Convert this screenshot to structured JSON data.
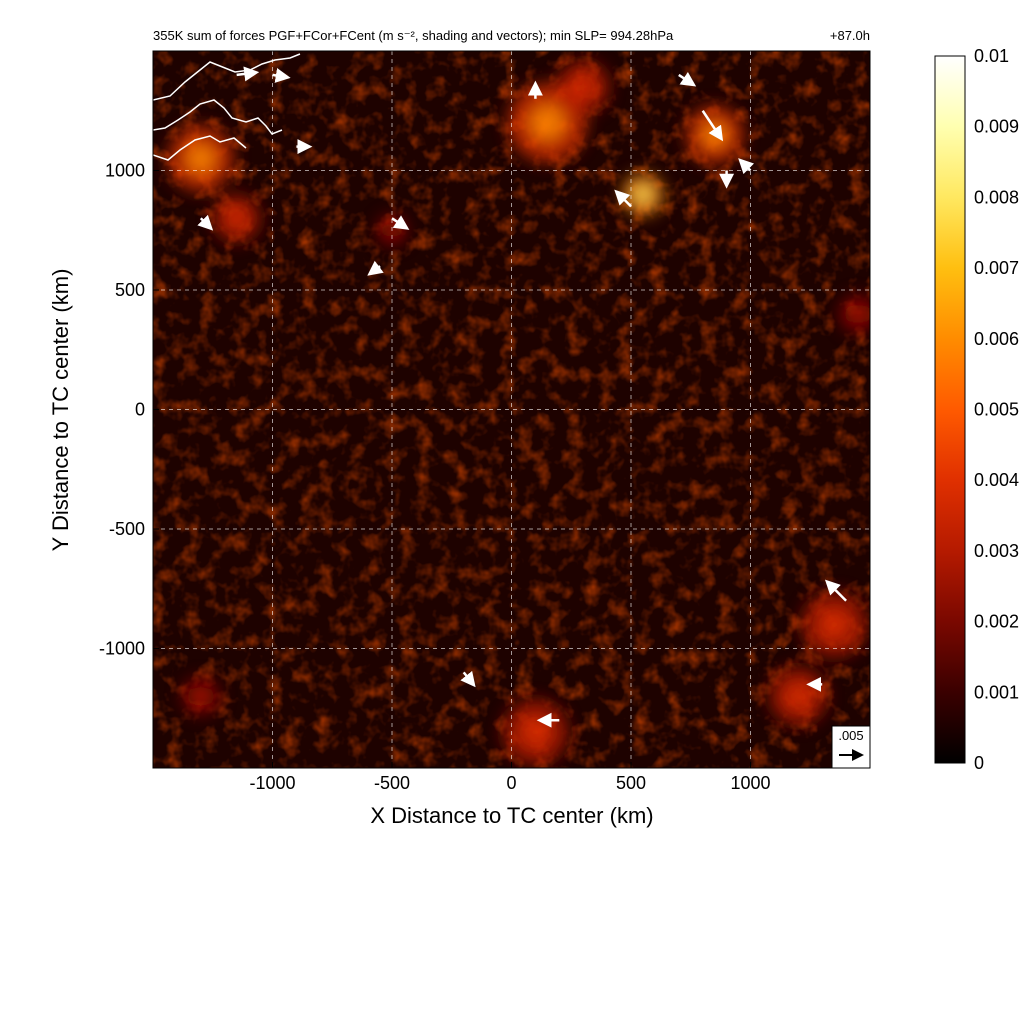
{
  "chart_data": {
    "type": "heatmap",
    "title": "355K sum of forces PGF+FCor+FCent (m s⁻², shading and vectors); min SLP= 994.28hPa",
    "time_label": "+87.0h",
    "xlabel": "X Distance to TC center (km)",
    "ylabel": "Y Distance to TC center (km)",
    "xlim": [
      -1500,
      1500
    ],
    "ylim": [
      -1500,
      1500
    ],
    "x_ticks": [
      -1000,
      -500,
      0,
      500,
      1000
    ],
    "x_tick_labels": [
      "-1000",
      "-500",
      "0",
      "500",
      "1000"
    ],
    "y_ticks": [
      -1000,
      -500,
      0,
      500,
      1000
    ],
    "y_tick_labels": [
      "-1000",
      "-500",
      "0",
      "500",
      "1000"
    ],
    "grid": true,
    "colorbar": {
      "min": 0,
      "max": 0.01,
      "tick_values": [
        0,
        0.001,
        0.002,
        0.003,
        0.004,
        0.005,
        0.006,
        0.007,
        0.008,
        0.009,
        0.01
      ],
      "tick_labels": [
        "0",
        "0.001",
        "0.002",
        "0.003",
        "0.004",
        "0.005",
        "0.006",
        "0.007",
        "0.008",
        "0.009",
        "0.01"
      ],
      "colors": [
        "#000000",
        "#3a0000",
        "#7a0800",
        "#b51a00",
        "#e03000",
        "#ff5a00",
        "#ff8c00",
        "#ffbf10",
        "#ffe860",
        "#ffffb0",
        "#ffffff"
      ]
    },
    "reference_vector": {
      "label": ".005",
      "magnitude": 0.005
    },
    "high_magnitude_regions": [
      {
        "x": -1300,
        "y": 1050,
        "level": 0.004,
        "spread": 250
      },
      {
        "x": -1150,
        "y": 800,
        "level": 0.003,
        "spread": 180
      },
      {
        "x": 150,
        "y": 1200,
        "level": 0.004,
        "spread": 300
      },
      {
        "x": 550,
        "y": 900,
        "level": 0.006,
        "spread": 160
      },
      {
        "x": 850,
        "y": 1150,
        "level": 0.004,
        "spread": 220
      },
      {
        "x": 300,
        "y": 1350,
        "level": 0.003,
        "spread": 200
      },
      {
        "x": 1350,
        "y": -900,
        "level": 0.003,
        "spread": 250
      },
      {
        "x": 1200,
        "y": -1200,
        "level": 0.003,
        "spread": 220
      },
      {
        "x": 100,
        "y": -1350,
        "level": 0.003,
        "spread": 250
      },
      {
        "x": -1300,
        "y": -1200,
        "level": 0.002,
        "spread": 150
      },
      {
        "x": 1450,
        "y": 400,
        "level": 0.002,
        "spread": 150
      },
      {
        "x": -500,
        "y": 750,
        "level": 0.002,
        "spread": 120
      }
    ],
    "vectors": [
      {
        "x": -1150,
        "y": 1400,
        "u": 0.004,
        "v": 0.0005
      },
      {
        "x": -1000,
        "y": 1400,
        "u": 0.003,
        "v": -0.0005
      },
      {
        "x": -900,
        "y": 1100,
        "u": 0.0025,
        "v": 0.0
      },
      {
        "x": -1300,
        "y": 800,
        "u": 0.002,
        "v": -0.002
      },
      {
        "x": -500,
        "y": 800,
        "u": 0.003,
        "v": -0.002
      },
      {
        "x": -550,
        "y": 600,
        "u": -0.002,
        "v": -0.0015
      },
      {
        "x": 100,
        "y": 1300,
        "u": 0.0,
        "v": 0.003
      },
      {
        "x": 700,
        "y": 1400,
        "u": 0.003,
        "v": -0.002
      },
      {
        "x": 800,
        "y": 1250,
        "u": 0.004,
        "v": -0.006
      },
      {
        "x": 500,
        "y": 850,
        "u": -0.003,
        "v": 0.003
      },
      {
        "x": 900,
        "y": 1000,
        "u": 0.0,
        "v": -0.003
      },
      {
        "x": 1000,
        "y": 1000,
        "u": -0.002,
        "v": 0.002
      },
      {
        "x": 1400,
        "y": -800,
        "u": -0.004,
        "v": 0.004
      },
      {
        "x": 200,
        "y": -1300,
        "u": -0.004,
        "v": 0.0
      },
      {
        "x": 1300,
        "y": -1150,
        "u": -0.0025,
        "v": 0.0
      },
      {
        "x": -200,
        "y": -1100,
        "u": 0.002,
        "v": -0.0025
      }
    ]
  }
}
